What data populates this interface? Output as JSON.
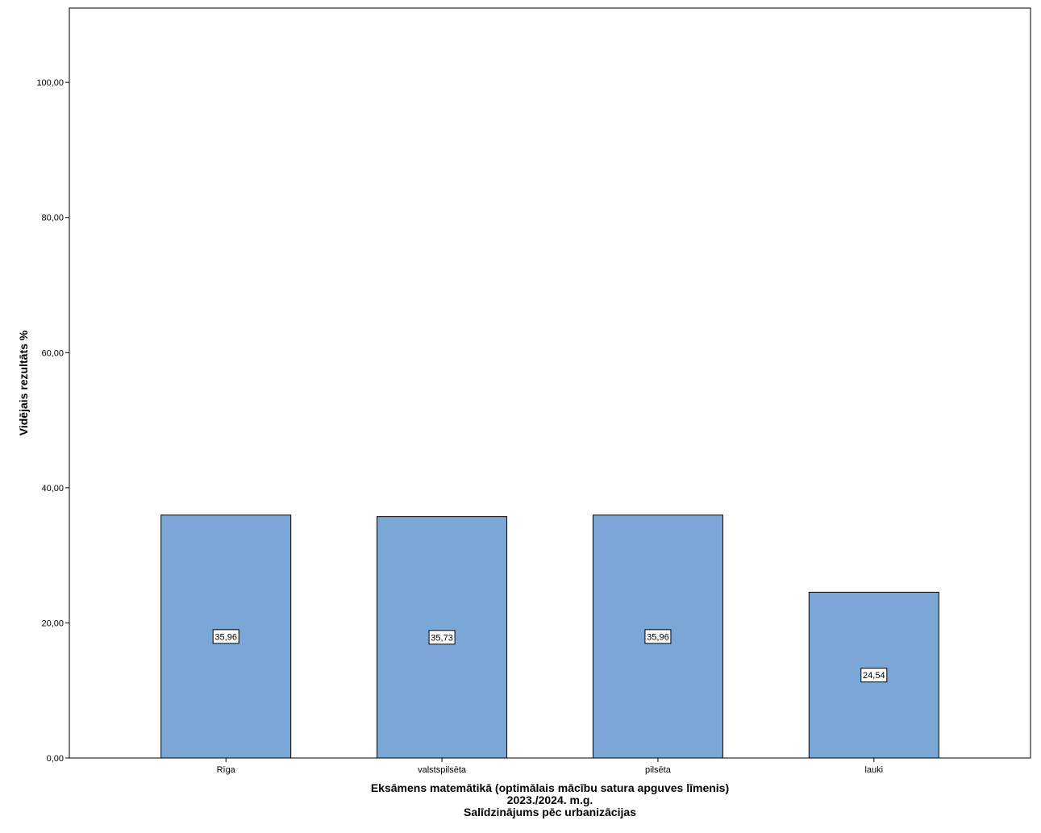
{
  "chart_data": {
    "type": "bar",
    "categories": [
      "Rīga",
      "valstspilsēta",
      "pilsēta",
      "lauki"
    ],
    "values": [
      35.96,
      35.73,
      35.96,
      24.54
    ],
    "data_labels": [
      "35,96",
      "35,73",
      "35,96",
      "24,54"
    ],
    "ylabel": "Vidējais rezultāts %",
    "xlabel_lines": [
      "Eksāmens matemātikā (optimālais mācību satura apguves līmenis)",
      "2023./2024. m.g.",
      "Salīdzinājums pēc urbanizācijas"
    ],
    "ylim": [
      0,
      111
    ],
    "yticks": [
      0,
      20,
      40,
      60,
      80,
      100
    ],
    "ytick_labels": [
      "0,00",
      "20,00",
      "40,00",
      "60,00",
      "80,00",
      "100,00"
    ],
    "grid": false,
    "legend": "none",
    "bar_color": "#7ba7d6",
    "bar_edge_color": "#000000"
  }
}
